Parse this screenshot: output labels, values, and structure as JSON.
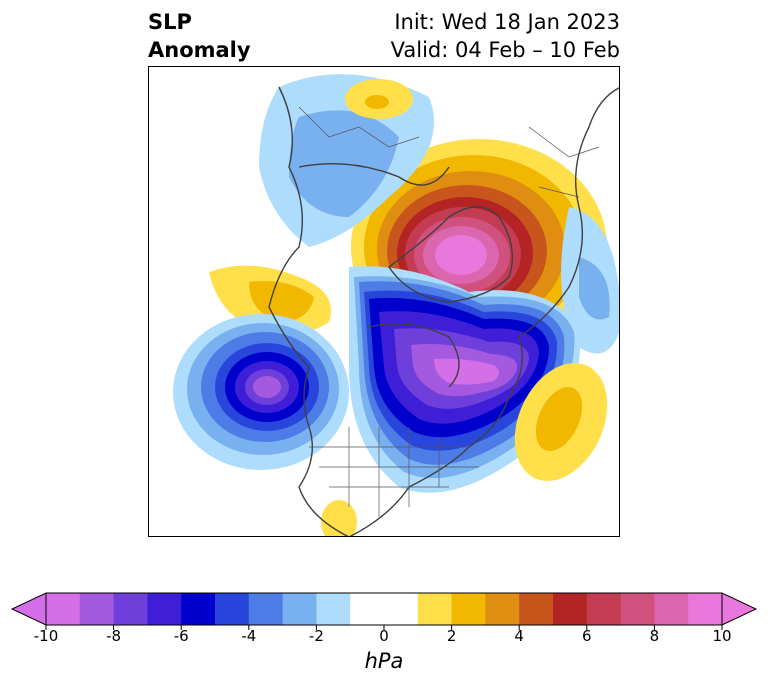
{
  "title": {
    "line1": "SLP",
    "line2": "Anomaly"
  },
  "info": {
    "init": "Init: Wed 18 Jan 2023",
    "valid": "Valid: 04 Feb – 10 Feb"
  },
  "colorbar": {
    "unit": "hPa",
    "ticks": [
      "-10",
      "-8",
      "-6",
      "-4",
      "-2",
      "0",
      "2",
      "4",
      "6",
      "8",
      "10"
    ],
    "tick_values": [
      -10,
      -8,
      -6,
      -4,
      -2,
      0,
      2,
      4,
      6,
      8,
      10
    ],
    "bins": [
      {
        "from": -10,
        "to": -9,
        "color": "#d46fe8"
      },
      {
        "from": -9,
        "to": -8,
        "color": "#a559e0"
      },
      {
        "from": -8,
        "to": -7,
        "color": "#6f3fdc"
      },
      {
        "from": -7,
        "to": -6,
        "color": "#3f1ed8"
      },
      {
        "from": -6,
        "to": -5,
        "color": "#0000cd"
      },
      {
        "from": -5,
        "to": -4,
        "color": "#2846dc"
      },
      {
        "from": -4,
        "to": -3,
        "color": "#4e7ce6"
      },
      {
        "from": -3,
        "to": -2,
        "color": "#78b0f0"
      },
      {
        "from": -2,
        "to": -1,
        "color": "#aedcfc"
      },
      {
        "from": -1,
        "to": 1,
        "color": "#ffffff"
      },
      {
        "from": 1,
        "to": 2,
        "color": "#ffe04a"
      },
      {
        "from": 2,
        "to": 3,
        "color": "#f2b800"
      },
      {
        "from": 3,
        "to": 4,
        "color": "#e08e12"
      },
      {
        "from": 4,
        "to": 5,
        "color": "#c8561c"
      },
      {
        "from": 5,
        "to": 6,
        "color": "#b42424"
      },
      {
        "from": 6,
        "to": 7,
        "color": "#c43c54"
      },
      {
        "from": 7,
        "to": 8,
        "color": "#d0507e"
      },
      {
        "from": 8,
        "to": 9,
        "color": "#dc66ae"
      },
      {
        "from": 9,
        "to": 10,
        "color": "#e878dc"
      }
    ],
    "extend_low_color": "#d46fe8",
    "extend_high_color": "#e878dc"
  }
}
